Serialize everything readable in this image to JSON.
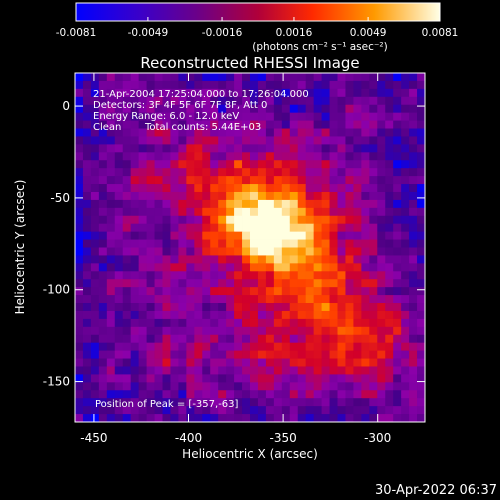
{
  "chart_data": {
    "type": "heatmap",
    "title": "Reconstructed RHESSI Image",
    "xlabel": "Heliocentric X (arcsec)",
    "ylabel": "Heliocentric Y (arcsec)",
    "xlim": [
      -460,
      -415
    ],
    "xlim_full": [
      -460,
      -275
    ],
    "ylim": [
      -172,
      18
    ],
    "x_ticks": [
      -450,
      -400,
      -350,
      -300
    ],
    "y_ticks": [
      0,
      -50,
      -100,
      -150
    ],
    "x_tick_labels": [
      "-450",
      "-400",
      "-350",
      "-300"
    ],
    "y_tick_labels": [
      "0",
      "-50",
      "-100",
      "-150"
    ],
    "colorbar": {
      "range": [
        -0.0081,
        0.0081
      ],
      "ticks": [
        -0.0081,
        -0.0049,
        -0.0016,
        0.0016,
        0.0049,
        0.0081
      ],
      "tick_labels": [
        "-0.0081",
        "-0.0049",
        "-0.0016",
        "0.0016",
        "0.0049",
        "0.0081"
      ],
      "units_label": "(photons cm⁻² s⁻¹ asec⁻²)",
      "colors": [
        "#0000ff",
        "#4b0082",
        "#8b00aa",
        "#d2002a",
        "#ff4000",
        "#ffa000",
        "#ffffe0"
      ]
    },
    "annotations": {
      "time_range": "21-Apr-2004 17:25:04.000 to 17:26:04.000",
      "detectors": "Detectors: 3F 4F 5F 6F 7F 8F, Att 0",
      "energy_range": "Energy Range: 6.0 - 12.0 keV",
      "algorithm": "Clean",
      "total_counts": "Total counts: 5.44E+03",
      "peak_position": "Position of Peak = [-357,-63]"
    },
    "peak": {
      "x": -357,
      "y": -63
    },
    "grid": false
  },
  "footer": {
    "timestamp": "30-Apr-2022 06:37"
  }
}
